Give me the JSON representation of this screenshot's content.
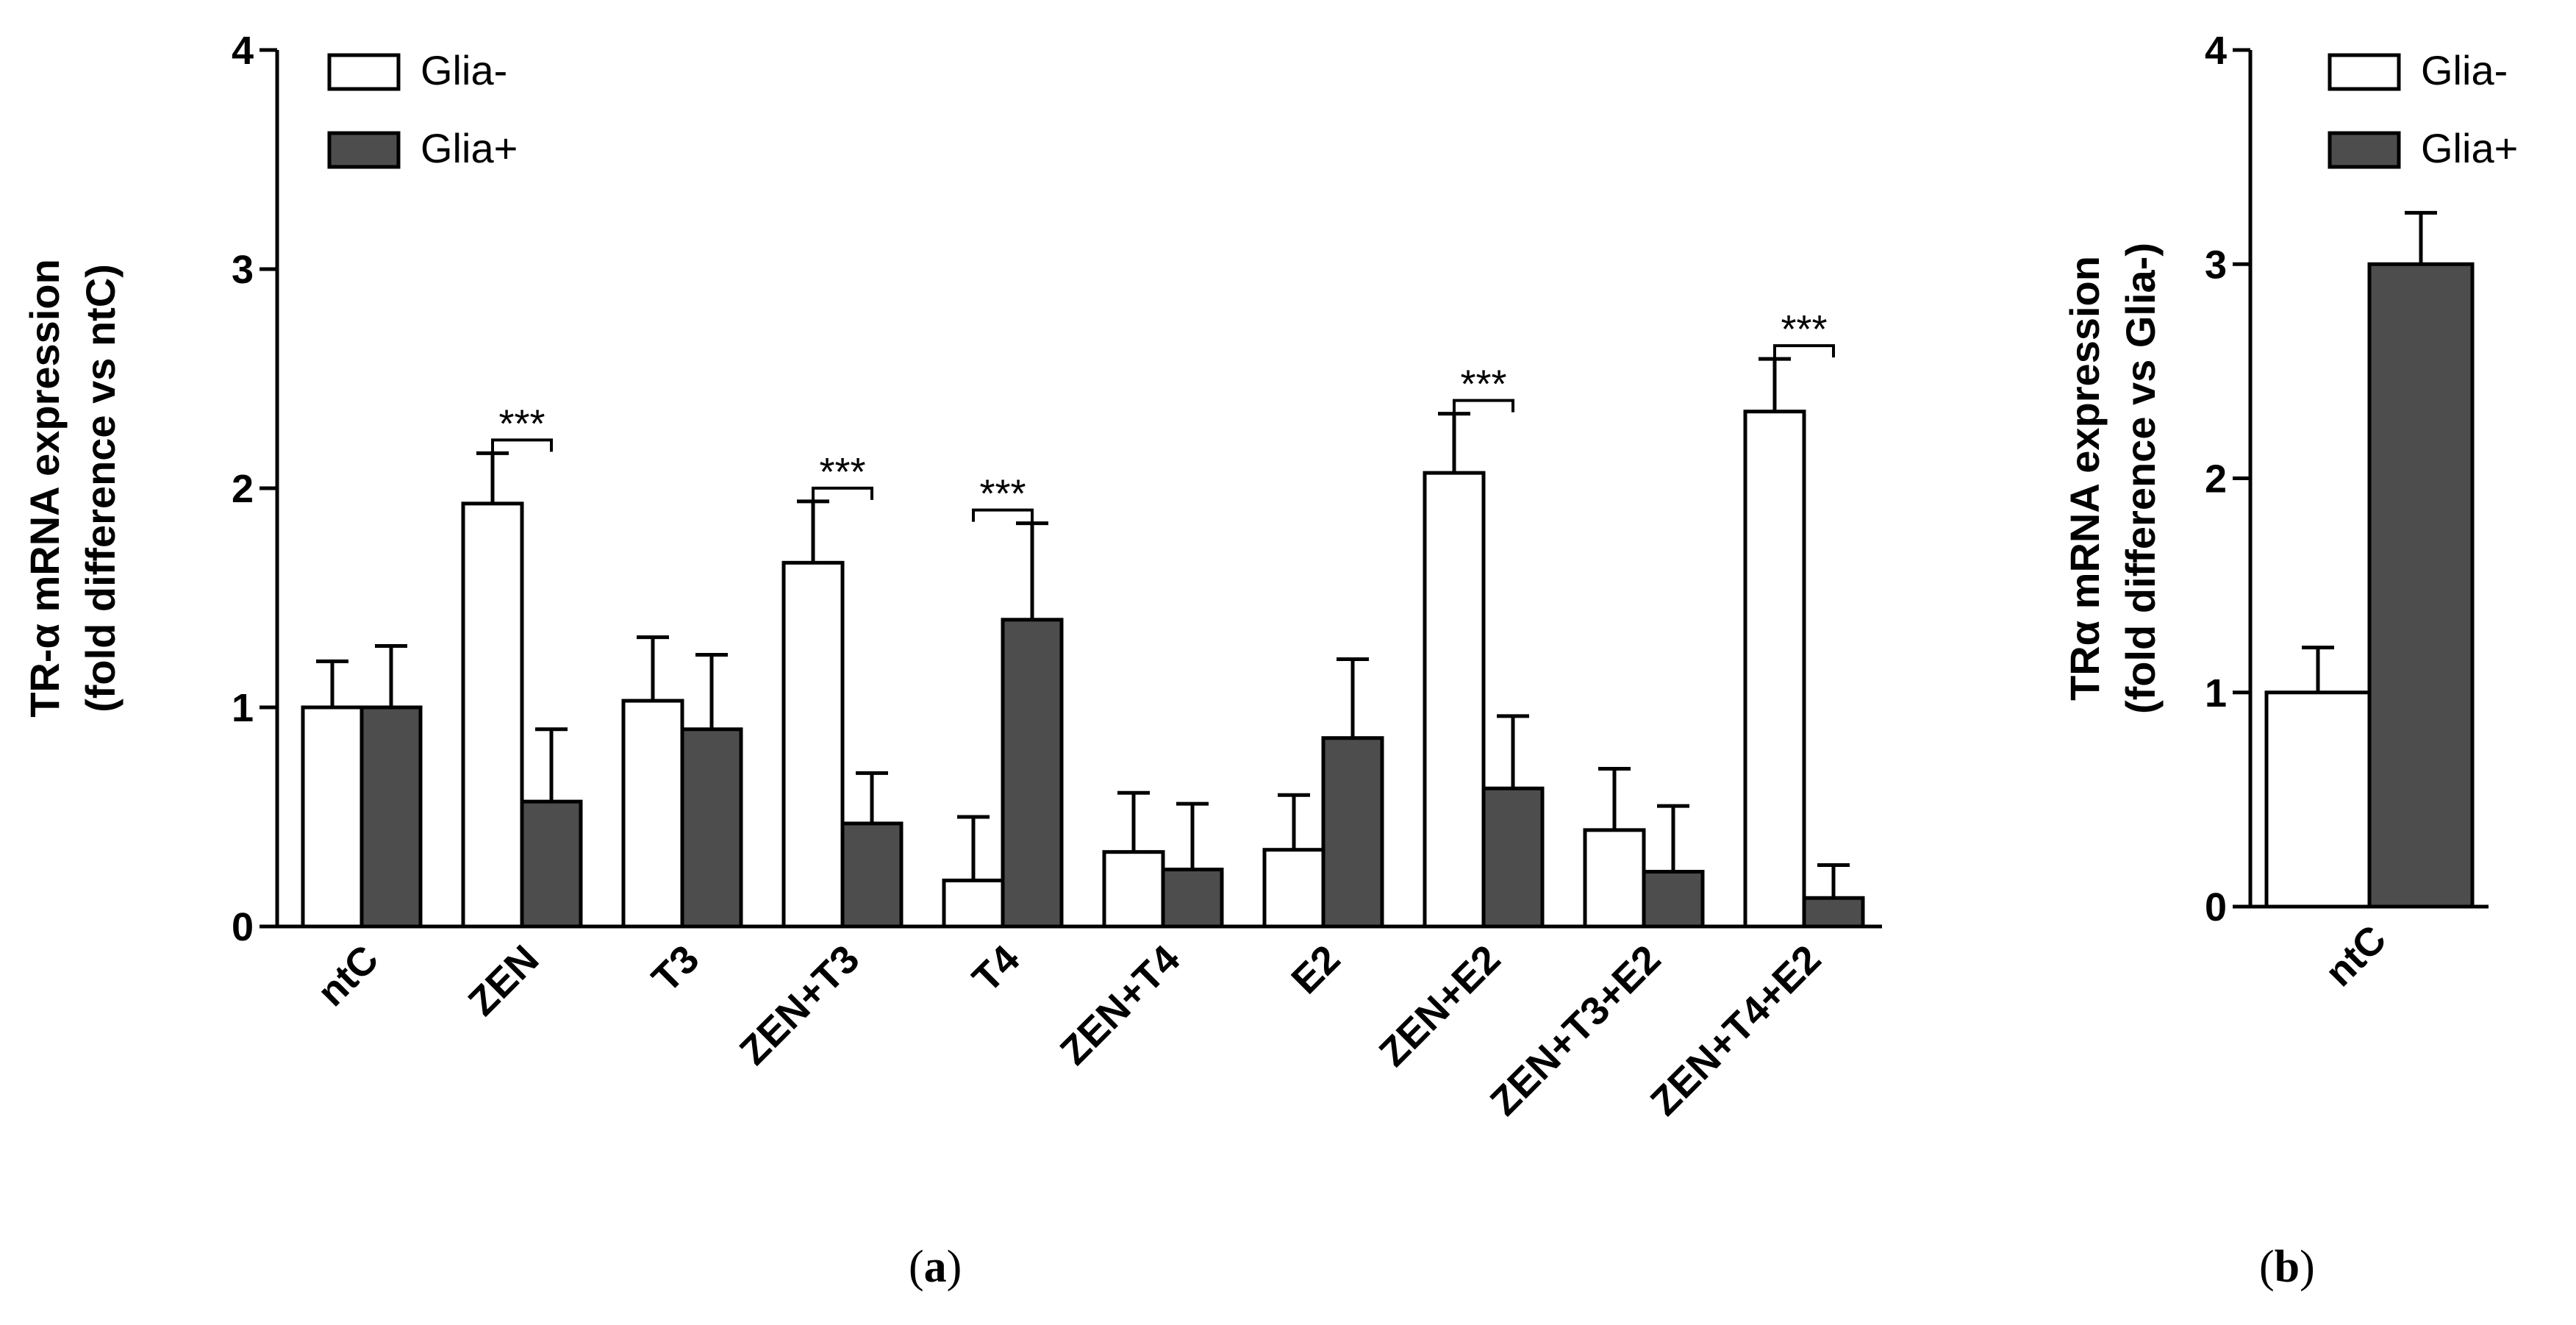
{
  "chart_data": [
    {
      "panel": "a",
      "type": "bar",
      "ylabel_line1": "TR-α mRNA expression",
      "ylabel_line2": "(fold difference vs ntC)",
      "ylim": [
        0,
        4
      ],
      "yticks": [
        "0",
        "1",
        "2",
        "3",
        "4"
      ],
      "categories": [
        "ntC",
        "ZEN",
        "T3",
        "ZEN+T3",
        "T4",
        "ZEN+T4",
        "E2",
        "ZEN+E2",
        "ZEN+T3+E2",
        "ZEN+T4+E2"
      ],
      "series": [
        {
          "name": "Glia-",
          "color": "#ffffff",
          "values": [
            1.0,
            1.93,
            1.03,
            1.66,
            0.21,
            0.34,
            0.35,
            2.07,
            0.44,
            2.35
          ],
          "errors": [
            0.21,
            0.23,
            0.29,
            0.28,
            0.29,
            0.27,
            0.25,
            0.27,
            0.28,
            0.24
          ]
        },
        {
          "name": "Glia+",
          "color": "#4d4d4d",
          "values": [
            1.0,
            0.57,
            0.9,
            0.47,
            1.4,
            0.26,
            0.86,
            0.63,
            0.25,
            0.13
          ],
          "errors": [
            0.28,
            0.33,
            0.34,
            0.23,
            0.44,
            0.3,
            0.36,
            0.33,
            0.3,
            0.15
          ]
        }
      ],
      "significance": [
        {
          "category": "ZEN",
          "label": "***"
        },
        {
          "category": "ZEN+T3",
          "label": "***"
        },
        {
          "category": "T4",
          "label": "***"
        },
        {
          "category": "ZEN+E2",
          "label": "***"
        },
        {
          "category": "ZEN+T4+E2",
          "label": "***"
        }
      ],
      "legend": {
        "position": "top-left",
        "entries": [
          "Glia-",
          "Glia+"
        ]
      },
      "caption_letter": "a"
    },
    {
      "panel": "b",
      "type": "bar",
      "ylabel_line1": "TRα mRNA expression",
      "ylabel_line2": "(fold difference vs Glia-)",
      "ylim": [
        0,
        4
      ],
      "yticks": [
        "0",
        "1",
        "2",
        "3",
        "4"
      ],
      "categories": [
        "ntC"
      ],
      "series": [
        {
          "name": "Glia-",
          "color": "#ffffff",
          "values": [
            1.0
          ],
          "errors": [
            0.21
          ]
        },
        {
          "name": "Glia+",
          "color": "#4d4d4d",
          "values": [
            3.0
          ],
          "errors": [
            0.24
          ]
        }
      ],
      "legend": {
        "position": "top-right",
        "entries": [
          "Glia-",
          "Glia+"
        ]
      },
      "caption_letter": "b"
    }
  ]
}
